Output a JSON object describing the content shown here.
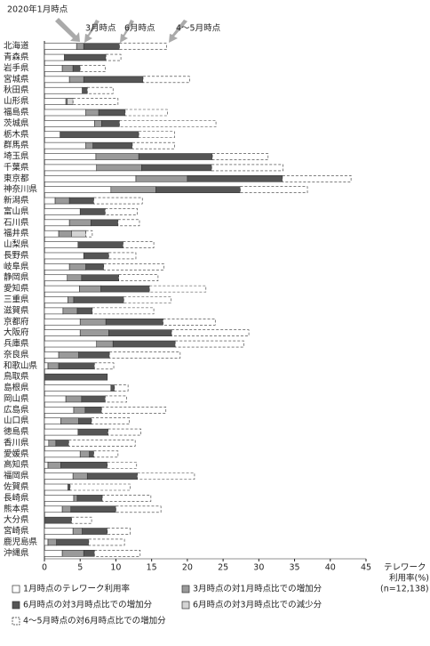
{
  "chart_data": {
    "type": "stacked_barh",
    "annotations": [
      "2020年1月時点",
      "3月時点",
      "6月時点",
      "4～5月時点"
    ],
    "xlabel": [
      "テレワーク",
      "利用率(%)"
    ],
    "note": "(n=12,138)",
    "categories": [
      "北海道",
      "青森県",
      "岩手県",
      "宮城県",
      "秋田県",
      "山形県",
      "福島県",
      "茨城県",
      "栃木県",
      "群馬県",
      "埼玉県",
      "千葉県",
      "東京都",
      "神奈川県",
      "新潟県",
      "富山県",
      "石川県",
      "福井県",
      "山梨県",
      "長野県",
      "岐阜県",
      "静岡県",
      "愛知県",
      "三重県",
      "滋賀県",
      "京都府",
      "大阪府",
      "兵庫県",
      "奈良県",
      "和歌山県",
      "鳥取県",
      "島根県",
      "岡山県",
      "広島県",
      "山口県",
      "徳島県",
      "香川県",
      "愛媛県",
      "高知県",
      "福岡県",
      "佐賀県",
      "長崎県",
      "熊本県",
      "大分県",
      "宮崎県",
      "鹿児島県",
      "沖縄県"
    ],
    "series": [
      {
        "name": "1月時点のテレワーク利用率",
        "color": "#ffffff",
        "line_style": "solid",
        "values": [
          4.5,
          2.8,
          2.5,
          3.5,
          5.3,
          3.0,
          5.8,
          7.0,
          2.2,
          5.8,
          7.2,
          7.3,
          12.8,
          9.3,
          1.5,
          5.0,
          3.5,
          2.0,
          4.7,
          5.5,
          3.5,
          3.2,
          4.9,
          3.3,
          2.6,
          5.0,
          5.0,
          7.3,
          2.0,
          0.5,
          0,
          9.3,
          3.0,
          4.1,
          2.3,
          4.7,
          0.6,
          5.0,
          0.5,
          4.0,
          3.3,
          4.1,
          2.5,
          0,
          4.0,
          0.5,
          2.5
        ]
      },
      {
        "name": "3月時点の対1月時点比での増加分",
        "color": "#9a9a9a",
        "line_style": "solid",
        "values": [
          1.0,
          0,
          1.5,
          2.0,
          0,
          1.0,
          1.8,
          1.0,
          0,
          1.0,
          6.0,
          6.3,
          7.2,
          6.3,
          2.0,
          0,
          3.0,
          3.8,
          0,
          0,
          2.3,
          2.0,
          3.0,
          0.8,
          2.0,
          3.6,
          4.0,
          2.3,
          2.8,
          1.5,
          0,
          0,
          2.2,
          1.6,
          2.5,
          0,
          1.0,
          1.3,
          1.8,
          2.0,
          0,
          0.5,
          1.2,
          0,
          1.3,
          1.2,
          3.0
        ]
      },
      {
        "name": "6月時点の対3月時点比での増加分",
        "color": "#555555",
        "line_style": "solid",
        "values": [
          5.0,
          5.8,
          1.0,
          8.3,
          0.7,
          0,
          3.7,
          2.5,
          11.0,
          5.5,
          10.3,
          9.8,
          13.3,
          11.8,
          3.4,
          3.5,
          3.8,
          0,
          6.3,
          3.5,
          2.5,
          5.2,
          6.8,
          7.0,
          2.1,
          8.0,
          8.8,
          8.7,
          4.3,
          5.0,
          8.8,
          0.5,
          3.3,
          2.3,
          1.8,
          4.2,
          1.8,
          0.6,
          6.5,
          7.0,
          0.3,
          3.5,
          6.3,
          3.8,
          3.5,
          4.5,
          1.5
        ]
      },
      {
        "name": "6月時点の対3月時点比での減少分",
        "color": "#d4d4d4",
        "line_style": "solid",
        "overlay": true,
        "values": [
          0,
          0,
          0,
          0,
          0,
          0.8,
          0,
          0,
          0,
          0,
          0,
          0,
          0,
          0,
          0,
          0,
          0,
          2.0,
          0,
          0,
          0,
          0,
          0,
          0,
          0,
          0,
          0,
          0,
          0,
          0,
          0,
          0,
          0,
          0,
          0,
          0,
          0,
          0,
          0,
          0,
          0,
          0,
          0,
          0,
          0,
          0,
          0
        ]
      },
      {
        "name": "4～5月時点の対6月時点比での増加分",
        "color": "#ffffff",
        "line_style": "dashed",
        "values": [
          6.6,
          2.1,
          3.5,
          6.5,
          3.6,
          6.3,
          5.9,
          13.5,
          5.0,
          5.9,
          7.8,
          10.0,
          9.6,
          9.4,
          6.8,
          4.5,
          3.0,
          0.9,
          4.3,
          3.8,
          8.4,
          5.5,
          7.9,
          6.6,
          8.6,
          7.3,
          10.8,
          9.6,
          9.9,
          2.7,
          0,
          1.9,
          3.0,
          9.0,
          5.3,
          4.6,
          9.3,
          3.4,
          4.1,
          8.0,
          8.4,
          6.8,
          6.3,
          2.8,
          3.2,
          5.0,
          6.4
        ]
      }
    ],
    "xlim": [
      0,
      45
    ],
    "xticks": [
      0,
      5,
      10,
      15,
      20,
      25,
      30,
      35,
      40,
      45
    ]
  }
}
